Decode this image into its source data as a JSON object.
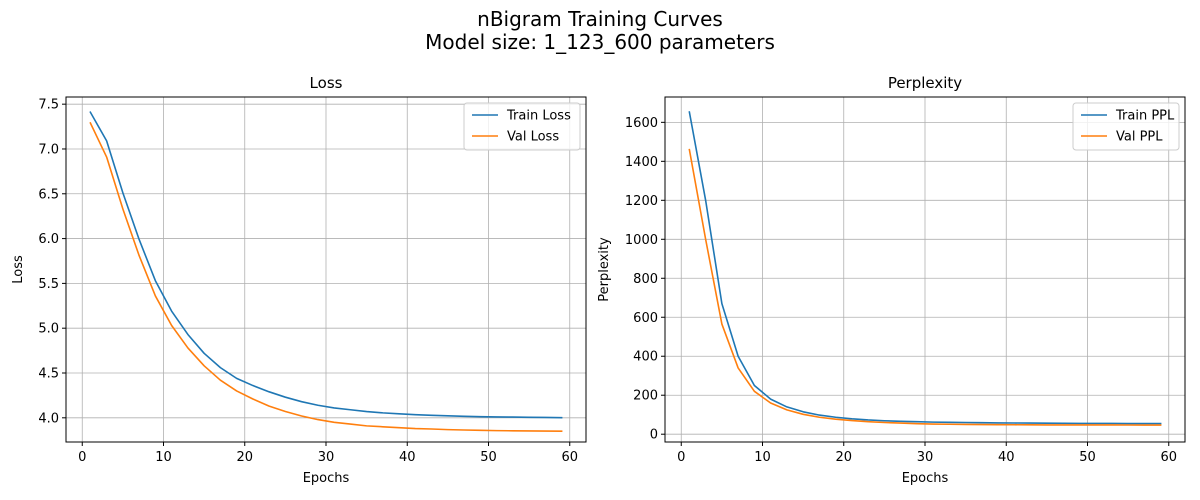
{
  "figure": {
    "title_line1": "nBigram Training Curves",
    "title_line2": "Model size: 1_123_600 parameters"
  },
  "chart_data": [
    {
      "type": "line",
      "title": "Loss",
      "xlabel": "Epochs",
      "ylabel": "Loss",
      "xlim": [
        -2,
        62
      ],
      "ylim": [
        3.73,
        7.58
      ],
      "xticks": [
        0,
        10,
        20,
        30,
        40,
        50,
        60
      ],
      "yticks": [
        4.0,
        4.5,
        5.0,
        5.5,
        6.0,
        6.5,
        7.0,
        7.5
      ],
      "yticks_fmt": 1,
      "grid": true,
      "legend": "top-right",
      "x": [
        1,
        3,
        5,
        7,
        9,
        11,
        13,
        15,
        17,
        19,
        21,
        23,
        25,
        27,
        29,
        31,
        33,
        35,
        37,
        39,
        41,
        43,
        45,
        47,
        49,
        51,
        53,
        55,
        57,
        59
      ],
      "series": [
        {
          "name": "Train Loss",
          "color": "#1f77b4",
          "values": [
            7.41,
            7.09,
            6.51,
            5.99,
            5.53,
            5.19,
            4.93,
            4.72,
            4.56,
            4.44,
            4.36,
            4.29,
            4.23,
            4.18,
            4.14,
            4.11,
            4.09,
            4.07,
            4.055,
            4.045,
            4.035,
            4.028,
            4.022,
            4.017,
            4.013,
            4.01,
            4.008,
            4.006,
            4.004,
            4.002
          ]
        },
        {
          "name": "Val Loss",
          "color": "#ff7f0e",
          "values": [
            7.29,
            6.91,
            6.33,
            5.81,
            5.36,
            5.03,
            4.78,
            4.58,
            4.42,
            4.3,
            4.21,
            4.13,
            4.07,
            4.02,
            3.98,
            3.95,
            3.93,
            3.91,
            3.9,
            3.89,
            3.88,
            3.875,
            3.868,
            3.864,
            3.86,
            3.857,
            3.855,
            3.853,
            3.852,
            3.851
          ]
        }
      ]
    },
    {
      "type": "line",
      "title": "Perplexity",
      "xlabel": "Epochs",
      "ylabel": "Perplexity",
      "xlim": [
        -2,
        62
      ],
      "ylim": [
        -40,
        1730
      ],
      "xticks": [
        0,
        10,
        20,
        30,
        40,
        50,
        60
      ],
      "yticks": [
        0,
        200,
        400,
        600,
        800,
        1000,
        1200,
        1400,
        1600
      ],
      "yticks_fmt": 0,
      "grid": true,
      "legend": "top-right",
      "x": [
        1,
        3,
        5,
        7,
        9,
        11,
        13,
        15,
        17,
        19,
        21,
        23,
        25,
        27,
        29,
        31,
        33,
        35,
        37,
        39,
        41,
        43,
        45,
        47,
        49,
        51,
        53,
        55,
        57,
        59
      ],
      "series": [
        {
          "name": "Train PPL",
          "color": "#1f77b4",
          "values": [
            1653,
            1200,
            670,
            400,
            250,
            180,
            140,
            115,
            98,
            87,
            79,
            73,
            69,
            66,
            64,
            62,
            61,
            60,
            59,
            58,
            57.5,
            57,
            56.5,
            56,
            55.5,
            55.2,
            55,
            54.8,
            54.7,
            54.6
          ]
        },
        {
          "name": "Val PPL",
          "color": "#ff7f0e",
          "values": [
            1460,
            1000,
            565,
            340,
            220,
            160,
            125,
            102,
            87,
            77,
            70,
            64,
            60,
            57,
            54,
            52,
            51,
            50,
            49.5,
            49,
            48.5,
            48,
            47.8,
            47.6,
            47.5,
            47.4,
            47.3,
            47.2,
            47.1,
            47.1
          ]
        }
      ]
    }
  ]
}
